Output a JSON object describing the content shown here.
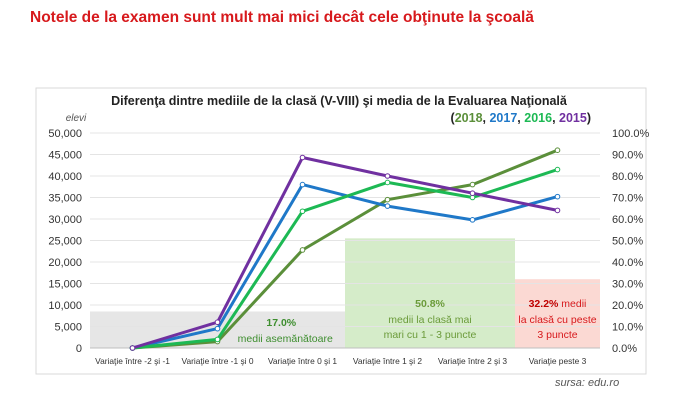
{
  "page_title": "Notele de la examen sunt mult mai mici decât cele obţinute la şcoală",
  "source_note": "sursa: edu.ro",
  "colors": {
    "title_red": "#d7191c",
    "s2018": "#5b8f3a",
    "s2017": "#1f78c8",
    "s2016": "#1db954",
    "s2015": "#7030a0",
    "band_gray": "#e6e6e6",
    "band_green": "#d5ecc9",
    "band_red": "#fbd9d3"
  },
  "chart_data": {
    "type": "line",
    "title": "Diferenţa dintre mediile de la clasă (V-VIII) şi media de la Evaluarea Naţională",
    "subtitle": {
      "open": "(",
      "close": ")",
      "sep": ", ",
      "years": [
        "2018",
        "2017",
        "2016",
        "2015"
      ]
    },
    "ylabel": "elevi",
    "categories": [
      "Variaţie între -2 şi -1",
      "Variaţie între -1 şi 0",
      "Variaţie între 0 şi 1",
      "Variaţie între 1 şi 2",
      "Variaţie între 2 şi 3",
      "Variaţie peste 3"
    ],
    "ylim": [
      0,
      50000
    ],
    "yticks": [
      "0",
      "5,000",
      "10,000",
      "15,000",
      "20,000",
      "25,000",
      "30,000",
      "35,000",
      "40,000",
      "45,000",
      "50,000"
    ],
    "y2lim": [
      0,
      100
    ],
    "y2ticks": [
      "0.0%",
      "10.0%",
      "20.0%",
      "30.0%",
      "40.0%",
      "50.0%",
      "60.0%",
      "70.0%",
      "80.0%",
      "90.0%",
      "100.0%"
    ],
    "grid": true,
    "series": [
      {
        "name": "2018",
        "color": "#5b8f3a",
        "values": [
          0,
          1500,
          22800,
          34500,
          38000,
          46000
        ]
      },
      {
        "name": "2017",
        "color": "#1f78c8",
        "values": [
          0,
          4500,
          38000,
          33000,
          29800,
          35200
        ]
      },
      {
        "name": "2016",
        "color": "#1db954",
        "values": [
          0,
          2000,
          31800,
          38500,
          35000,
          41500
        ]
      },
      {
        "name": "2015",
        "color": "#7030a0",
        "values": [
          0,
          6000,
          44300,
          40000,
          36000,
          32000
        ]
      }
    ],
    "annotations": [
      {
        "pct": "17.0%",
        "text": "medii asemănătoare",
        "pct_color": "#3e8e2f",
        "text_color": "#3e8e2f"
      },
      {
        "pct": "50.8%",
        "lines": [
          "medii la clasă mai",
          "mari cu 1 - 3 puncte"
        ],
        "pct_color": "#6b9b3a",
        "text_color": "#6b9b3a"
      },
      {
        "pct": "32.2%",
        "pct_suffix": " medii",
        "lines": [
          "la clasă cu peste",
          "3 puncte"
        ],
        "pct_color": "#c00000",
        "text_color": "#d7191c"
      }
    ]
  }
}
